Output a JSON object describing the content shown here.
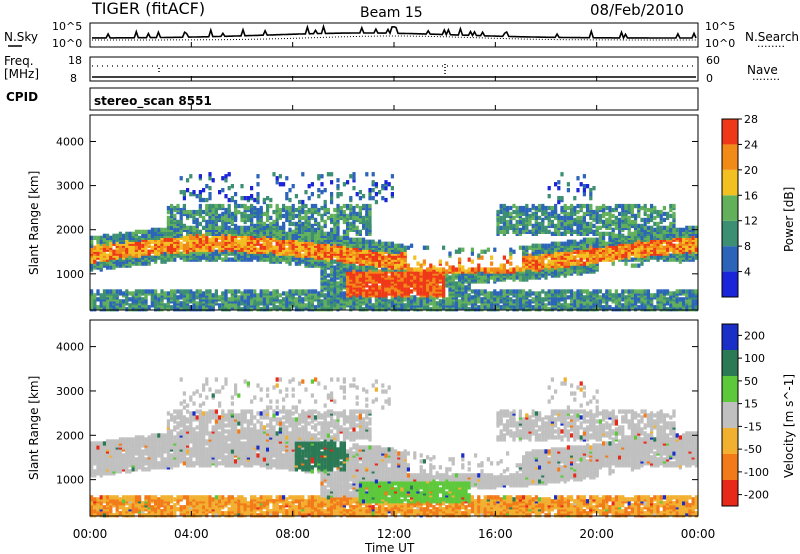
{
  "header": {
    "title": "TIGER (fitACF)",
    "beam": "Beam 15",
    "date": "08/Feb/2010"
  },
  "noise_panel": {
    "left_label": "N.Sky",
    "right_label": "N.Search",
    "left_ticks": [
      "10^5",
      "10^0"
    ],
    "right_ticks": [
      "10^5",
      "10^0"
    ]
  },
  "freq_panel": {
    "left_label_1": "Freq.",
    "left_label_2": "[MHz]",
    "right_label": "Nave",
    "left_ticks": [
      "18",
      "8"
    ],
    "right_ticks": [
      "60",
      "0"
    ]
  },
  "cpid_panel": {
    "label": "CPID",
    "value": "stereo_scan 8551"
  },
  "chart_data": [
    {
      "type": "heatmap",
      "quantity": "Power",
      "ylabel": "Slant Range [km]",
      "colorbar_label": "Power [dB]",
      "ylim": [
        180,
        4600
      ],
      "yticks": [
        "1000",
        "2000",
        "3000",
        "4000"
      ],
      "colorbar_ticks": [
        "4",
        "8",
        "12",
        "16",
        "20",
        "24",
        "28"
      ],
      "colors": [
        "#1a24d8",
        "#2b64b8",
        "#3c8f72",
        "#62b05a",
        "#f2c020",
        "#f28a18",
        "#ef3818"
      ]
    },
    {
      "type": "heatmap",
      "quantity": "Velocity",
      "ylabel": "Slant Range [km]",
      "colorbar_label": "Velocity [m s^-1]",
      "ylim": [
        180,
        4600
      ],
      "yticks": [
        "1000",
        "2000",
        "3000",
        "4000"
      ],
      "colorbar_ticks": [
        "200",
        "100",
        "50",
        "15",
        "-15",
        "-50",
        "-100",
        "-200"
      ],
      "colors": [
        "#1a2ec8",
        "#2b7a55",
        "#5cc83a",
        "#c0c0c0",
        "#f2b030",
        "#f27a18",
        "#e82818"
      ]
    }
  ],
  "xaxis": {
    "label": "Time UT",
    "ticks": [
      "00:00",
      "04:00",
      "08:00",
      "12:00",
      "16:00",
      "20:00",
      "00:00"
    ]
  },
  "legend_dots": "........"
}
